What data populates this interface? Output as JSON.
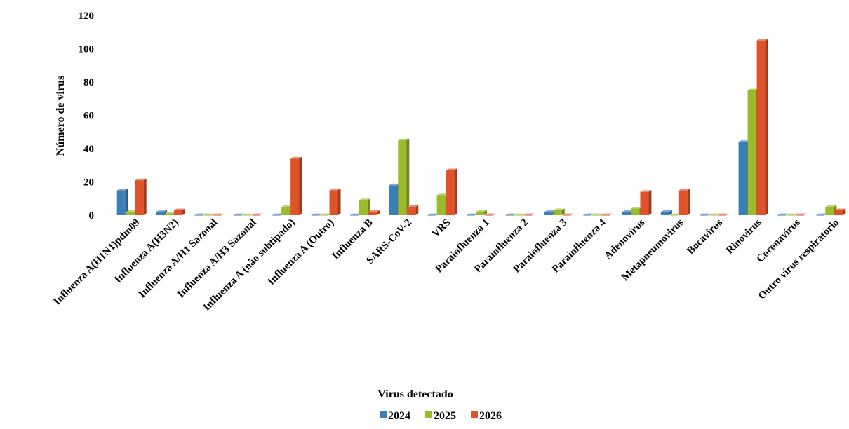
{
  "chart_data": {
    "type": "bar",
    "xlabel": "Virus detectado",
    "ylabel": "Número de virus",
    "ylim": [
      0,
      120
    ],
    "yticks": [
      0,
      20,
      40,
      60,
      80,
      100,
      120
    ],
    "grid": false,
    "legend_position": "bottom",
    "categories": [
      "Influenza A(H1N1)pdm09",
      "Influenza A(H3N2)",
      "Influenza A/H1 Sazonal",
      "Influenza A/H3 Sazonal",
      "Influenza A (não subtipado)",
      "Influenza A (Outro)",
      "Influenza B",
      "SARS-CoV-2",
      "VRS",
      "Parainfluenza 1",
      "Parainfluenza 2",
      "Parainfluenza 3",
      "Parainfluenza 4",
      "Adenovírus",
      "Metapneumovirus",
      "Bocavirus",
      "Rinovirus",
      "Coronavírus",
      "Outro vírus respiratório"
    ],
    "series": [
      {
        "name": "2024",
        "color": "#3A7FB5",
        "values": [
          15,
          2,
          0,
          0,
          0,
          0,
          0,
          18,
          0,
          0,
          0,
          2,
          0,
          2,
          2,
          0,
          44,
          0,
          0
        ]
      },
      {
        "name": "2025",
        "color": "#9BBB2A",
        "values": [
          2,
          1,
          0,
          0,
          5,
          0,
          9,
          45,
          12,
          2,
          0,
          3,
          0,
          4,
          0,
          0,
          75,
          0,
          5
        ]
      },
      {
        "name": "2026",
        "color": "#E0522A",
        "values": [
          21,
          3,
          0,
          0,
          34,
          15,
          2,
          5,
          27,
          0,
          0,
          0,
          0,
          14,
          15,
          0,
          105,
          0,
          3
        ]
      }
    ]
  }
}
